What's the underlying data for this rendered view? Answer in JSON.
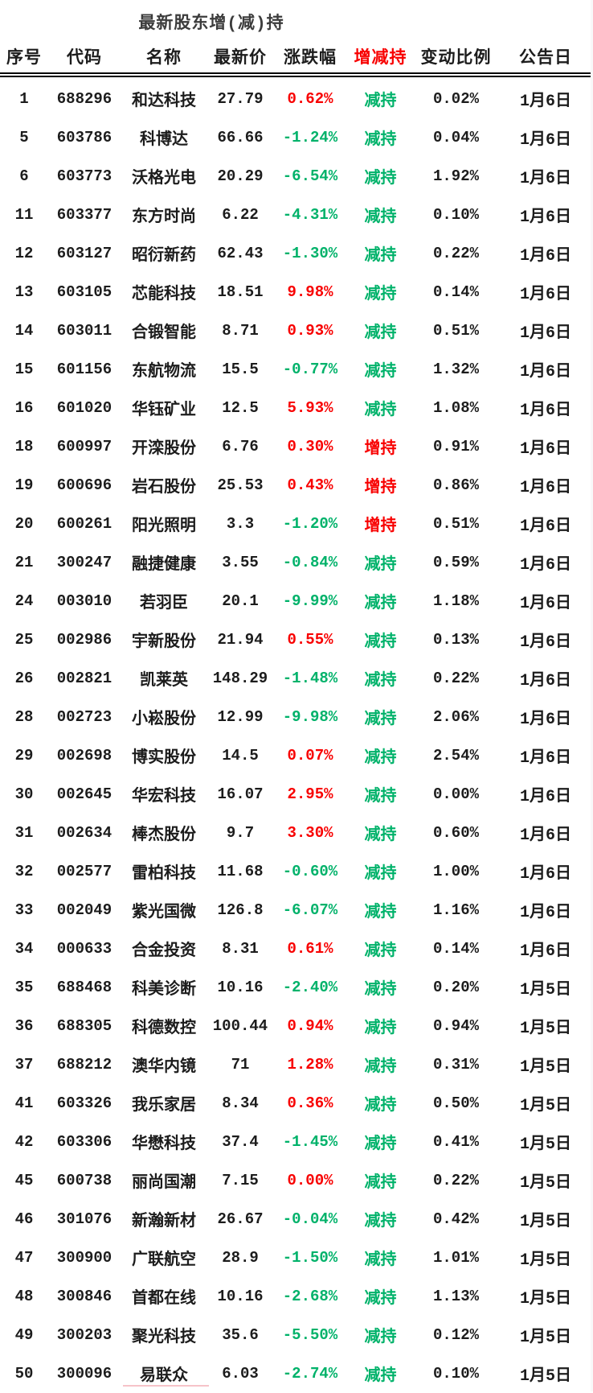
{
  "title": "最新股东增(减)持",
  "colors": {
    "rise_red": "#f80000",
    "fall_green": "#00b26a",
    "header_accent_red": "#f80000",
    "title_color": "#3c3c3c",
    "bottom_marker_pink": "#f6c3c9"
  },
  "table": {
    "columns": [
      {
        "label": "序号"
      },
      {
        "label": "代码"
      },
      {
        "label": "名称"
      },
      {
        "label": "最新价"
      },
      {
        "label": "涨跌幅"
      },
      {
        "label": "增减持",
        "color": "#f80000"
      },
      {
        "label": "变动比例"
      },
      {
        "label": "公告日"
      }
    ],
    "rows": [
      [
        "1",
        "688296",
        "和达科技",
        "27.79",
        "0.62%",
        "减持",
        "0.02%",
        "1月6日"
      ],
      [
        "5",
        "603786",
        "科博达",
        "66.66",
        "-1.24%",
        "减持",
        "0.04%",
        "1月6日"
      ],
      [
        "6",
        "603773",
        "沃格光电",
        "20.29",
        "-6.54%",
        "减持",
        "1.92%",
        "1月6日"
      ],
      [
        "11",
        "603377",
        "东方时尚",
        "6.22",
        "-4.31%",
        "减持",
        "0.10%",
        "1月6日"
      ],
      [
        "12",
        "603127",
        "昭衍新药",
        "62.43",
        "-1.30%",
        "减持",
        "0.22%",
        "1月6日"
      ],
      [
        "13",
        "603105",
        "芯能科技",
        "18.51",
        "9.98%",
        "减持",
        "0.14%",
        "1月6日"
      ],
      [
        "14",
        "603011",
        "合锻智能",
        "8.71",
        "0.93%",
        "减持",
        "0.51%",
        "1月6日"
      ],
      [
        "15",
        "601156",
        "东航物流",
        "15.5",
        "-0.77%",
        "减持",
        "1.32%",
        "1月6日"
      ],
      [
        "16",
        "601020",
        "华钰矿业",
        "12.5",
        "5.93%",
        "减持",
        "1.08%",
        "1月6日"
      ],
      [
        "18",
        "600997",
        "开滦股份",
        "6.76",
        "0.30%",
        "增持",
        "0.91%",
        "1月6日"
      ],
      [
        "19",
        "600696",
        "岩石股份",
        "25.53",
        "0.43%",
        "增持",
        "0.86%",
        "1月6日"
      ],
      [
        "20",
        "600261",
        "阳光照明",
        "3.3",
        "-1.20%",
        "增持",
        "0.51%",
        "1月6日"
      ],
      [
        "21",
        "300247",
        "融捷健康",
        "3.55",
        "-0.84%",
        "减持",
        "0.59%",
        "1月6日"
      ],
      [
        "24",
        "003010",
        "若羽臣",
        "20.1",
        "-9.99%",
        "减持",
        "1.18%",
        "1月6日"
      ],
      [
        "25",
        "002986",
        "宇新股份",
        "21.94",
        "0.55%",
        "减持",
        "0.13%",
        "1月6日"
      ],
      [
        "26",
        "002821",
        "凯莱英",
        "148.29",
        "-1.48%",
        "减持",
        "0.22%",
        "1月6日"
      ],
      [
        "28",
        "002723",
        "小崧股份",
        "12.99",
        "-9.98%",
        "减持",
        "2.06%",
        "1月6日"
      ],
      [
        "29",
        "002698",
        "博实股份",
        "14.5",
        "0.07%",
        "减持",
        "2.54%",
        "1月6日"
      ],
      [
        "30",
        "002645",
        "华宏科技",
        "16.07",
        "2.95%",
        "减持",
        "0.00%",
        "1月6日"
      ],
      [
        "31",
        "002634",
        "棒杰股份",
        "9.7",
        "3.30%",
        "减持",
        "0.60%",
        "1月6日"
      ],
      [
        "32",
        "002577",
        "雷柏科技",
        "11.68",
        "-0.60%",
        "减持",
        "1.00%",
        "1月6日"
      ],
      [
        "33",
        "002049",
        "紫光国微",
        "126.8",
        "-6.07%",
        "减持",
        "1.16%",
        "1月6日"
      ],
      [
        "34",
        "000633",
        "合金投资",
        "8.31",
        "0.61%",
        "减持",
        "0.14%",
        "1月6日"
      ],
      [
        "35",
        "688468",
        "科美诊断",
        "10.16",
        "-2.40%",
        "减持",
        "0.20%",
        "1月5日"
      ],
      [
        "36",
        "688305",
        "科德数控",
        "100.44",
        "0.94%",
        "减持",
        "0.94%",
        "1月5日"
      ],
      [
        "37",
        "688212",
        "澳华内镜",
        "71",
        "1.28%",
        "减持",
        "0.31%",
        "1月5日"
      ],
      [
        "41",
        "603326",
        "我乐家居",
        "8.34",
        "0.36%",
        "减持",
        "0.50%",
        "1月5日"
      ],
      [
        "42",
        "603306",
        "华懋科技",
        "37.4",
        "-1.45%",
        "减持",
        "0.41%",
        "1月5日"
      ],
      [
        "45",
        "600738",
        "丽尚国潮",
        "7.15",
        "0.00%",
        "减持",
        "0.22%",
        "1月5日"
      ],
      [
        "46",
        "301076",
        "新瀚新材",
        "26.67",
        "-0.04%",
        "减持",
        "0.42%",
        "1月5日"
      ],
      [
        "47",
        "300900",
        "广联航空",
        "28.9",
        "-1.50%",
        "减持",
        "1.01%",
        "1月5日"
      ],
      [
        "48",
        "300846",
        "首都在线",
        "10.16",
        "-2.68%",
        "减持",
        "1.13%",
        "1月5日"
      ],
      [
        "49",
        "300203",
        "聚光科技",
        "35.6",
        "-5.50%",
        "减持",
        "0.12%",
        "1月5日"
      ],
      [
        "50",
        "300096",
        "易联众",
        "6.03",
        "-2.74%",
        "减持",
        "0.10%",
        "1月5日"
      ]
    ]
  }
}
